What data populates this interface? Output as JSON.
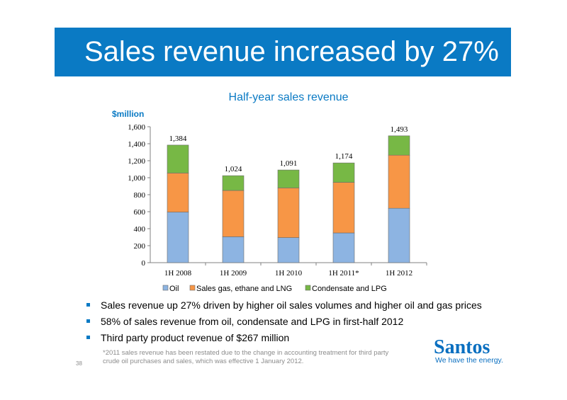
{
  "slide": {
    "title": "Sales revenue increased by 27%",
    "page_number": "38",
    "footnote": "*2011 sales revenue has been restated due to the change in accounting treatment for third party crude oil purchases and sales, which was effective 1 January 2012.",
    "logo": {
      "name": "Santos",
      "tagline": "We have the energy."
    },
    "accent_color": "#0a7ac4"
  },
  "bullets": [
    "Sales revenue up 27% driven by higher oil sales volumes and higher oil and gas prices",
    "58% of sales revenue from oil, condensate and LPG in first-half 2012",
    "Third party product revenue of $267 million"
  ],
  "chart_data": {
    "type": "bar",
    "stacked": true,
    "title": "Half-year sales revenue",
    "ylabel": "$million",
    "xlabel": "",
    "categories": [
      "1H 2008",
      "1H 2009",
      "1H 2010",
      "1H 2011*",
      "1H 2012"
    ],
    "series": [
      {
        "name": "Oil",
        "color": "#8db4e2",
        "values": [
          595,
          305,
          295,
          350,
          640
        ]
      },
      {
        "name": "Sales gas, ethane and LNG",
        "color": "#f79646",
        "values": [
          460,
          545,
          585,
          595,
          625
        ]
      },
      {
        "name": "Condensate and LPG",
        "color": "#77b845",
        "values": [
          329,
          174,
          211,
          229,
          228
        ]
      }
    ],
    "totals": [
      "1,384",
      "1,024",
      "1,091",
      "1,174",
      "1,493"
    ],
    "ylim": [
      0,
      1600
    ],
    "yticks": [
      "0",
      "200",
      "400",
      "600",
      "800",
      "1,000",
      "1,200",
      "1,400",
      "1,600"
    ],
    "grid": false,
    "legend_position": "bottom"
  }
}
